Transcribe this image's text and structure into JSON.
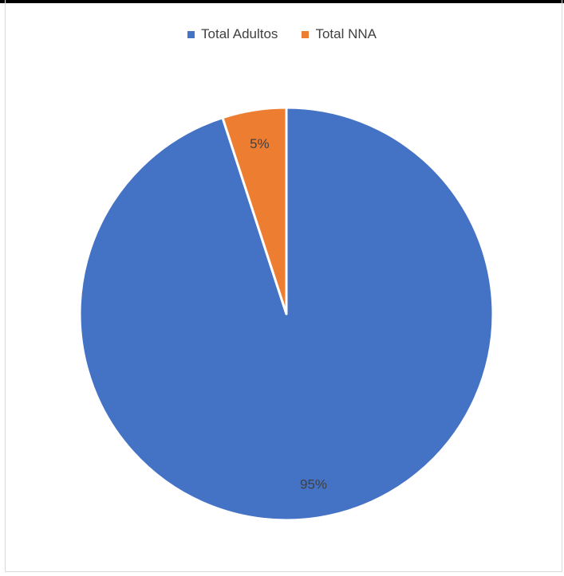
{
  "chart_data": {
    "type": "pie",
    "title": "",
    "categories": [
      "Total Adultos",
      "Total NNA"
    ],
    "values": [
      95,
      5
    ],
    "labels": [
      "95%",
      "5%"
    ],
    "colors": [
      "#4472C4",
      "#ED7D31"
    ],
    "legend_position": "top"
  }
}
